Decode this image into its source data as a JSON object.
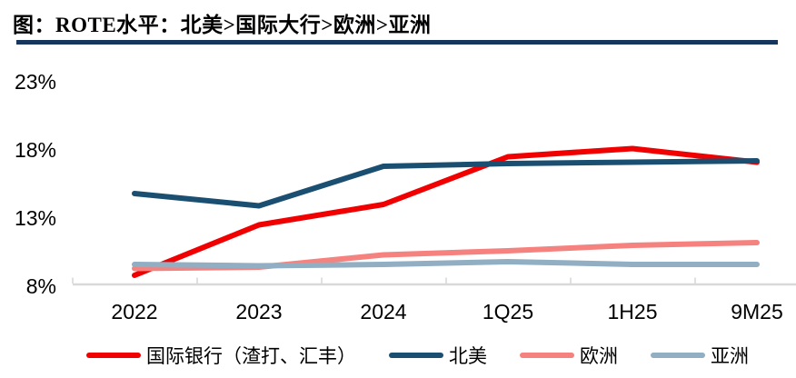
{
  "header": {
    "title": "图：ROTE水平：北美>国际大行>欧洲>亚洲"
  },
  "colors": {
    "title_rule": "#17365d",
    "axis_line": "#d9d9d9",
    "tick_text": "#000000",
    "background": "#ffffff"
  },
  "chart_data": {
    "type": "line",
    "title": "ROTE水平：北美>国际大行>欧洲>亚洲",
    "categories": [
      "2022",
      "2023",
      "2024",
      "1Q25",
      "1H25",
      "9M25"
    ],
    "series": [
      {
        "name": "国际银行（渣打、汇丰）",
        "color": "#f00000",
        "values": [
          8.8,
          12.5,
          14.0,
          17.5,
          18.1,
          17.1
        ]
      },
      {
        "name": "北美",
        "color": "#1b4f72",
        "values": [
          14.8,
          13.9,
          16.8,
          17.0,
          17.1,
          17.2
        ]
      },
      {
        "name": "欧洲",
        "color": "#f5827e",
        "values": [
          9.3,
          9.4,
          10.3,
          10.6,
          11.0,
          11.2
        ]
      },
      {
        "name": "亚洲",
        "color": "#91aec3",
        "values": [
          9.6,
          9.5,
          9.6,
          9.8,
          9.6,
          9.6
        ]
      }
    ],
    "ylim": [
      8,
      23
    ],
    "yticks": [
      {
        "value": 8,
        "label": "8%"
      },
      {
        "value": 13,
        "label": "13%"
      },
      {
        "value": 18,
        "label": "18%"
      },
      {
        "value": 23,
        "label": "23%"
      }
    ],
    "grid": false,
    "legend_position": "bottom"
  }
}
